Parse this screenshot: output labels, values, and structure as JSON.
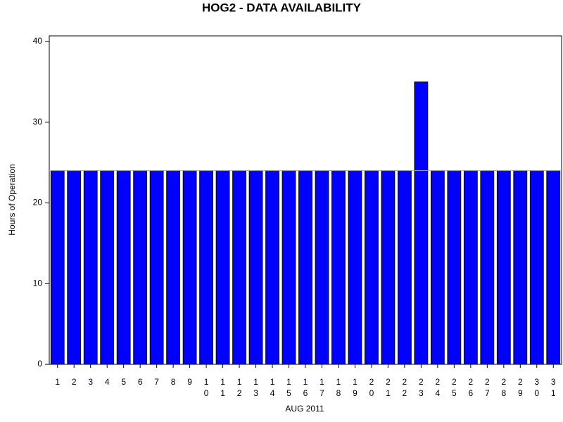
{
  "chart_data": {
    "type": "bar",
    "title": "HOG2 - DATA AVAILABILITY",
    "x_label": "AUG 2011",
    "y_label": "Hours of Operation",
    "categories": [
      "1",
      "2",
      "3",
      "4",
      "5",
      "6",
      "7",
      "8",
      "9",
      "10",
      "11",
      "12",
      "13",
      "14",
      "15",
      "16",
      "17",
      "18",
      "19",
      "20",
      "21",
      "22",
      "23",
      "24",
      "25",
      "26",
      "27",
      "28",
      "29",
      "30",
      "31"
    ],
    "values": [
      24,
      24,
      24,
      24,
      24,
      24,
      24,
      24,
      24,
      24,
      24,
      24,
      24,
      24,
      24,
      24,
      24,
      24,
      24,
      24,
      24,
      24,
      35,
      24,
      24,
      24,
      24,
      24,
      24,
      24,
      24
    ],
    "color": "#0000ff",
    "reference_line": 24,
    "ylim": [
      0,
      40
    ],
    "yticks": [
      0,
      10,
      20,
      30,
      40
    ],
    "grid": false
  }
}
